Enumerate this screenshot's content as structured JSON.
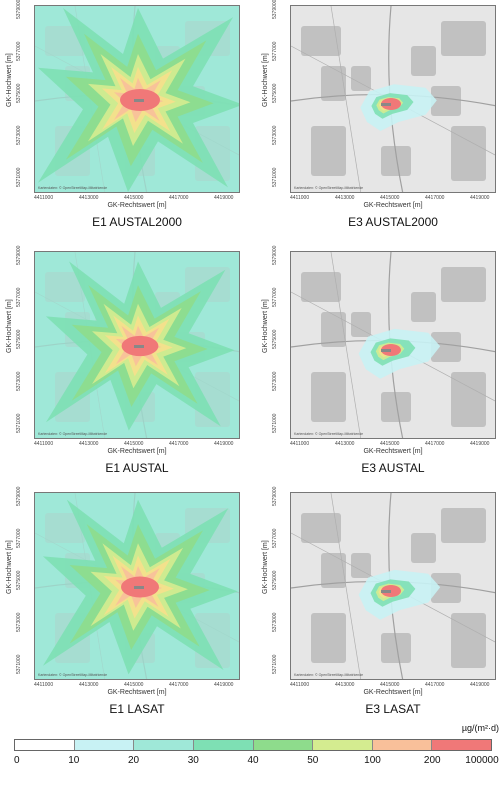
{
  "panels": [
    {
      "id": "e1-austal2000",
      "title": "E1 AUSTAL2000",
      "variant": "e1",
      "plume_scale": 1.0
    },
    {
      "id": "e3-austal2000",
      "title": "E3 AUSTAL2000",
      "variant": "e3",
      "plume_scale": 0.45
    },
    {
      "id": "e1-austal",
      "title": "E1 AUSTAL",
      "variant": "e1",
      "plume_scale": 0.92
    },
    {
      "id": "e3-austal",
      "title": "E3 AUSTAL",
      "variant": "e3",
      "plume_scale": 0.48
    },
    {
      "id": "e1-lasat",
      "title": "E1 LASAT",
      "variant": "e1",
      "plume_scale": 0.95
    },
    {
      "id": "e3-lasat",
      "title": "E3 LASAT",
      "variant": "e3",
      "plume_scale": 0.48
    }
  ],
  "axes": {
    "xlabel": "GK-Rechtswert [m]",
    "ylabel": "GK-Hochwert [m]",
    "xticks": [
      "4411000",
      "4413000",
      "4415000",
      "4417000",
      "4419000"
    ],
    "yticks": [
      "5371000",
      "5373000",
      "5375000",
      "5377000",
      "5379000"
    ]
  },
  "attribution": "Kartendaten: © OpenStreetMap-Mitwirkende",
  "legend": {
    "unit": "µg/(m²·d)",
    "labels": [
      "0",
      "10",
      "20",
      "30",
      "40",
      "50",
      "100",
      "200",
      "100000"
    ],
    "colors": [
      "#ffffff",
      "#c8f2f4",
      "#9fe8d8",
      "#7ee0b4",
      "#8edc8c",
      "#d4ec90",
      "#f6e08c",
      "#f9c09a",
      "#f07878"
    ]
  }
}
